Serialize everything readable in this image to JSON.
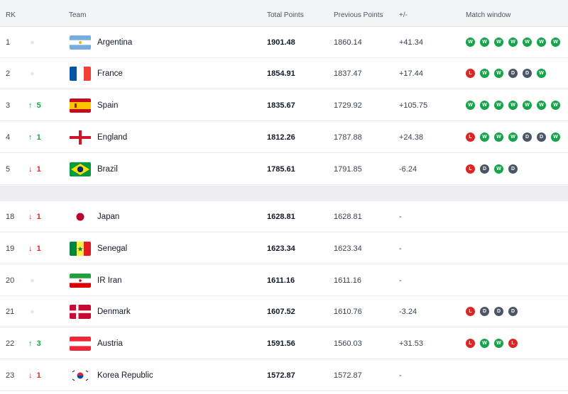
{
  "header": {
    "rank": "RK",
    "team": "Team",
    "total": "Total Points",
    "previous": "Previous Points",
    "change": "+/-",
    "match_window": "Match window"
  },
  "rows": [
    {
      "rank": "1",
      "move": "",
      "move_dir": "none",
      "team": "Argentina",
      "flag": "argentina-flag-icon",
      "total": "1901.48",
      "previous": "1860.14",
      "change": "+41.34",
      "form": [
        "W",
        "W",
        "W",
        "W",
        "W",
        "W",
        "W"
      ]
    },
    {
      "rank": "2",
      "move": "",
      "move_dir": "none",
      "team": "France",
      "flag": "france-flag-icon",
      "total": "1854.91",
      "previous": "1837.47",
      "change": "+17.44",
      "form": [
        "L",
        "W",
        "W",
        "D",
        "D",
        "W"
      ]
    },
    {
      "rank": "3",
      "move": "5",
      "move_dir": "up",
      "team": "Spain",
      "flag": "spain-flag-icon",
      "total": "1835.67",
      "previous": "1729.92",
      "change": "+105.75",
      "form": [
        "W",
        "W",
        "W",
        "W",
        "W",
        "W",
        "W"
      ]
    },
    {
      "rank": "4",
      "move": "1",
      "move_dir": "up",
      "team": "England",
      "flag": "england-flag-icon",
      "total": "1812.26",
      "previous": "1787.88",
      "change": "+24.38",
      "form": [
        "L",
        "W",
        "W",
        "W",
        "D",
        "D",
        "W"
      ]
    },
    {
      "rank": "5",
      "move": "1",
      "move_dir": "down",
      "team": "Brazil",
      "flag": "brazil-flag-icon",
      "total": "1785.61",
      "previous": "1791.85",
      "change": "-6.24",
      "form": [
        "L",
        "D",
        "W",
        "D"
      ]
    },
    {
      "rank": "18",
      "move": "1",
      "move_dir": "down",
      "team": "Japan",
      "flag": "japan-flag-icon",
      "total": "1628.81",
      "previous": "1628.81",
      "change": "-",
      "form": []
    },
    {
      "rank": "19",
      "move": "1",
      "move_dir": "down",
      "team": "Senegal",
      "flag": "senegal-flag-icon",
      "total": "1623.34",
      "previous": "1623.34",
      "change": "-",
      "form": []
    },
    {
      "rank": "20",
      "move": "",
      "move_dir": "none",
      "team": "IR Iran",
      "flag": "iran-flag-icon",
      "total": "1611.16",
      "previous": "1611.16",
      "change": "-",
      "form": []
    },
    {
      "rank": "21",
      "move": "",
      "move_dir": "none",
      "team": "Denmark",
      "flag": "denmark-flag-icon",
      "total": "1607.52",
      "previous": "1610.76",
      "change": "-3.24",
      "form": [
        "L",
        "D",
        "D",
        "D"
      ]
    },
    {
      "rank": "22",
      "move": "3",
      "move_dir": "up",
      "team": "Austria",
      "flag": "austria-flag-icon",
      "total": "1591.56",
      "previous": "1560.03",
      "change": "+31.53",
      "form": [
        "L",
        "W",
        "W",
        "L"
      ]
    },
    {
      "rank": "23",
      "move": "1",
      "move_dir": "down",
      "team": "Korea Republic",
      "flag": "korea-flag-icon",
      "total": "1572.87",
      "previous": "1572.87",
      "change": "-",
      "form": []
    }
  ],
  "colors": {
    "win": "#16a34a",
    "loss": "#dc2626",
    "draw": "#4b5563",
    "up": "#16a34a",
    "down": "#dc2626"
  }
}
